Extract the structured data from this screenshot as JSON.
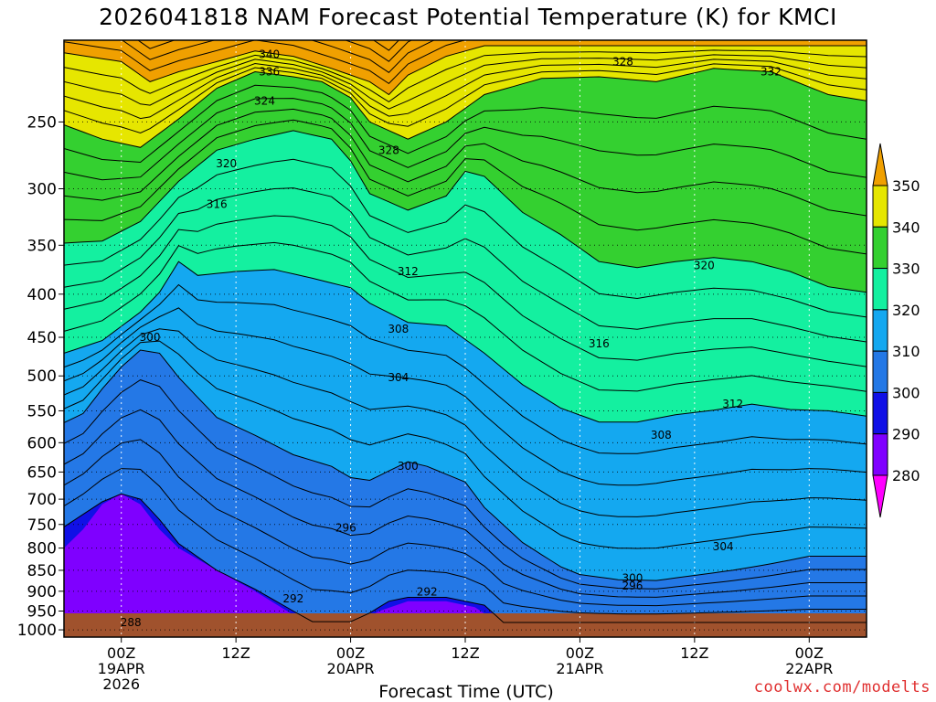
{
  "chart_data": {
    "type": "heatmap",
    "title": "2026041818 NAM Forecast Potential Temperature (K) for KMCI",
    "xlabel": "Forecast Time (UTC)",
    "ylabel": "",
    "credit": "coolwx.com/modelts",
    "x_ticks": [
      {
        "label": "00Z",
        "sub1": "19APR",
        "sub2": "2026",
        "hour": 6
      },
      {
        "label": "12Z",
        "sub1": "",
        "sub2": "",
        "hour": 18
      },
      {
        "label": "00Z",
        "sub1": "20APR",
        "sub2": "",
        "hour": 30
      },
      {
        "label": "12Z",
        "sub1": "",
        "sub2": "",
        "hour": 42
      },
      {
        "label": "00Z",
        "sub1": "21APR",
        "sub2": "",
        "hour": 54
      },
      {
        "label": "12Z",
        "sub1": "",
        "sub2": "",
        "hour": 66
      },
      {
        "label": "00Z",
        "sub1": "22APR",
        "sub2": "",
        "hour": 78
      }
    ],
    "xlim_hours": [
      0,
      84
    ],
    "y_ticks": [
      250,
      300,
      350,
      400,
      450,
      500,
      550,
      600,
      650,
      700,
      750,
      800,
      850,
      900,
      950,
      1000
    ],
    "ylim": [
      200,
      1020
    ],
    "y_scale": "log-pressure",
    "grid": true,
    "colorbar": {
      "levels": [
        280,
        290,
        300,
        310,
        320,
        330,
        340,
        350
      ],
      "colors": [
        "#7f00ff",
        "#1010e6",
        "#2478e6",
        "#14a8f0",
        "#14f0a0",
        "#34d030",
        "#e6e600",
        "#f0a000"
      ],
      "under_color": "#ff00ff",
      "over_color": "#f0a000",
      "extend": "both"
    },
    "ground_color": "#a0522d",
    "contour_labels": [
      {
        "text": "340",
        "hour": 21.5,
        "p": 208
      },
      {
        "text": "336",
        "hour": 21.5,
        "p": 218
      },
      {
        "text": "328",
        "hour": 58.5,
        "p": 212
      },
      {
        "text": "332",
        "hour": 74,
        "p": 218
      },
      {
        "text": "324",
        "hour": 21,
        "p": 236
      },
      {
        "text": "328",
        "hour": 34,
        "p": 270
      },
      {
        "text": "320",
        "hour": 17,
        "p": 280
      },
      {
        "text": "316",
        "hour": 16,
        "p": 313
      },
      {
        "text": "312",
        "hour": 36,
        "p": 376
      },
      {
        "text": "320",
        "hour": 67,
        "p": 370
      },
      {
        "text": "308",
        "hour": 35,
        "p": 440
      },
      {
        "text": "300",
        "hour": 9,
        "p": 450
      },
      {
        "text": "316",
        "hour": 56,
        "p": 458
      },
      {
        "text": "304",
        "hour": 35,
        "p": 502
      },
      {
        "text": "312",
        "hour": 70,
        "p": 540
      },
      {
        "text": "308",
        "hour": 62.5,
        "p": 588
      },
      {
        "text": "300",
        "hour": 36,
        "p": 640
      },
      {
        "text": "296",
        "hour": 29.5,
        "p": 757
      },
      {
        "text": "304",
        "hour": 69,
        "p": 797
      },
      {
        "text": "300",
        "hour": 59.5,
        "p": 868
      },
      {
        "text": "296",
        "hour": 59.5,
        "p": 887
      },
      {
        "text": "292",
        "hour": 38,
        "p": 902
      },
      {
        "text": "292",
        "hour": 24,
        "p": 918
      },
      {
        "text": "288",
        "hour": 7,
        "p": 980
      }
    ],
    "band_boundaries": [
      {
        "name": "340 K",
        "pts": [
          [
            0,
            207
          ],
          [
            6,
            212
          ],
          [
            9,
            224
          ],
          [
            12,
            218
          ],
          [
            16,
            212
          ],
          [
            20,
            206
          ],
          [
            24,
            209
          ],
          [
            28,
            216
          ],
          [
            32,
            224
          ],
          [
            34,
            232
          ],
          [
            36,
            220
          ],
          [
            40,
            209
          ],
          [
            44,
            203
          ],
          [
            84,
            203
          ]
        ]
      },
      {
        "name": "330 K",
        "pts": [
          [
            0,
            252
          ],
          [
            4,
            262
          ],
          [
            8,
            268
          ],
          [
            12,
            248
          ],
          [
            16,
            228
          ],
          [
            20,
            218
          ],
          [
            24,
            221
          ],
          [
            27,
            224
          ],
          [
            30,
            234
          ],
          [
            32,
            250
          ],
          [
            36,
            262
          ],
          [
            40,
            250
          ],
          [
            44,
            232
          ],
          [
            50,
            222
          ],
          [
            56,
            221
          ],
          [
            62,
            224
          ],
          [
            68,
            216
          ],
          [
            74,
            218
          ],
          [
            80,
            232
          ],
          [
            84,
            236
          ]
        ]
      },
      {
        "name": "320 K",
        "pts": [
          [
            0,
            348
          ],
          [
            4,
            346
          ],
          [
            8,
            328
          ],
          [
            12,
            294
          ],
          [
            16,
            270
          ],
          [
            20,
            262
          ],
          [
            24,
            256
          ],
          [
            28,
            262
          ],
          [
            30,
            278
          ],
          [
            32,
            304
          ],
          [
            36,
            318
          ],
          [
            40,
            306
          ],
          [
            42,
            286
          ],
          [
            44,
            290
          ],
          [
            48,
            320
          ],
          [
            52,
            340
          ],
          [
            56,
            366
          ],
          [
            60,
            372
          ],
          [
            64,
            366
          ],
          [
            68,
            362
          ],
          [
            72,
            366
          ],
          [
            76,
            376
          ],
          [
            80,
            392
          ],
          [
            84,
            398
          ]
        ]
      },
      {
        "name": "310 K",
        "pts": [
          [
            0,
            470
          ],
          [
            4,
            454
          ],
          [
            8,
            420
          ],
          [
            10,
            398
          ],
          [
            12,
            366
          ],
          [
            14,
            380
          ],
          [
            18,
            376
          ],
          [
            22,
            374
          ],
          [
            26,
            383
          ],
          [
            30,
            393
          ],
          [
            32,
            410
          ],
          [
            36,
            432
          ],
          [
            40,
            436
          ],
          [
            44,
            470
          ],
          [
            48,
            512
          ],
          [
            52,
            546
          ],
          [
            56,
            567
          ],
          [
            60,
            567
          ],
          [
            64,
            556
          ],
          [
            68,
            549
          ],
          [
            72,
            540
          ],
          [
            76,
            548
          ],
          [
            80,
            550
          ],
          [
            84,
            558
          ]
        ]
      },
      {
        "name": "300 K",
        "pts": [
          [
            0,
            568
          ],
          [
            2,
            554
          ],
          [
            4,
            518
          ],
          [
            6,
            488
          ],
          [
            8,
            466
          ],
          [
            10,
            470
          ],
          [
            12,
            502
          ],
          [
            16,
            560
          ],
          [
            20,
            588
          ],
          [
            24,
            620
          ],
          [
            28,
            640
          ],
          [
            30,
            660
          ],
          [
            32,
            665
          ],
          [
            34,
            648
          ],
          [
            36,
            632
          ],
          [
            38,
            640
          ],
          [
            42,
            668
          ],
          [
            44,
            716
          ],
          [
            48,
            788
          ],
          [
            52,
            842
          ],
          [
            54,
            860
          ],
          [
            58,
            872
          ],
          [
            62,
            874
          ],
          [
            66,
            862
          ],
          [
            70,
            850
          ],
          [
            74,
            835
          ],
          [
            78,
            818
          ],
          [
            84,
            818
          ]
        ]
      },
      {
        "name": "290 K",
        "pts": [
          [
            0,
            755
          ],
          [
            4,
            705
          ],
          [
            6,
            690
          ],
          [
            8,
            700
          ],
          [
            10,
            740
          ],
          [
            12,
            790
          ],
          [
            16,
            850
          ],
          [
            20,
            895
          ],
          [
            24,
            950
          ],
          [
            26,
            978
          ],
          [
            30,
            978
          ],
          [
            32,
            955
          ],
          [
            34,
            925
          ],
          [
            36,
            915
          ],
          [
            40,
            915
          ],
          [
            44,
            935
          ],
          [
            46,
            980
          ]
        ]
      }
    ]
  }
}
